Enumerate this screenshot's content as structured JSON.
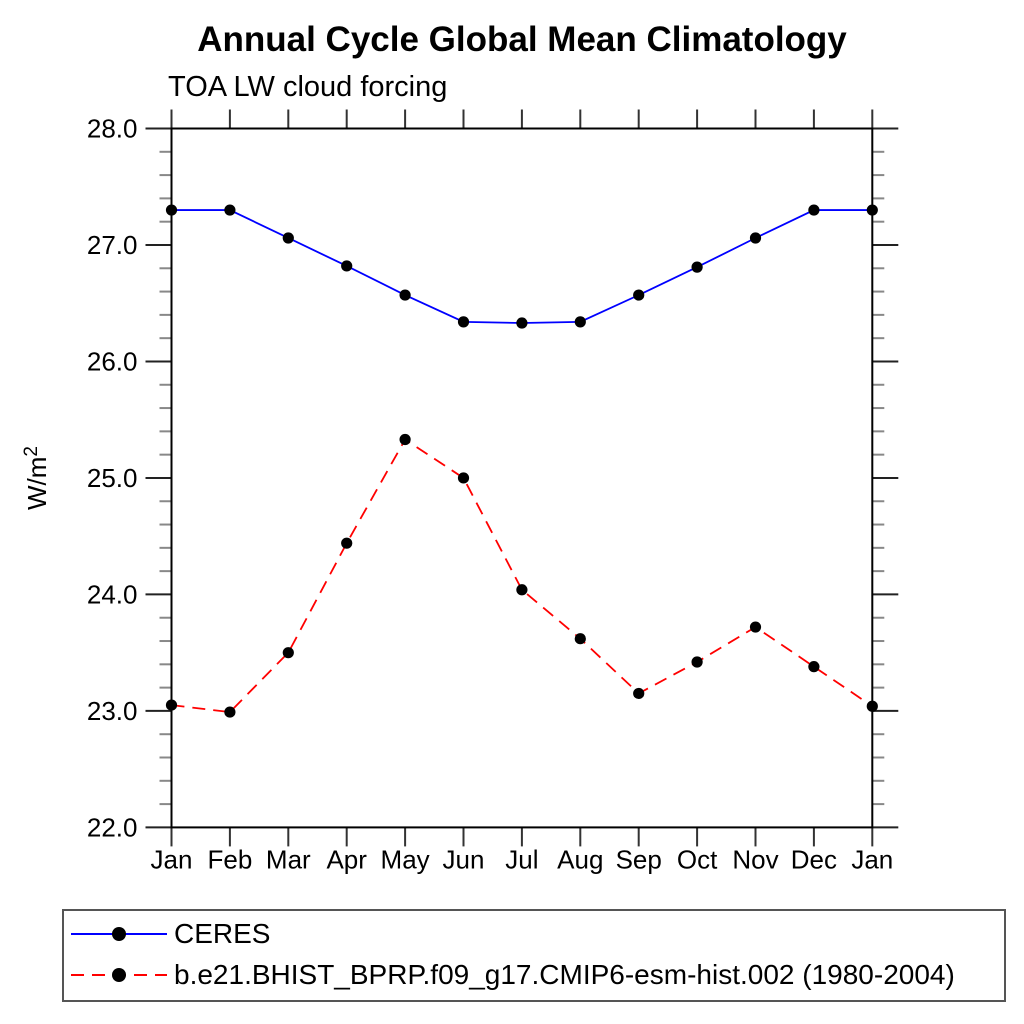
{
  "chart_data": {
    "type": "line",
    "title": "Annual Cycle Global Mean Climatology",
    "subtitle": "TOA LW cloud forcing",
    "ylabel": "W/m²",
    "xlabel": "",
    "categories": [
      "Jan",
      "Feb",
      "Mar",
      "Apr",
      "May",
      "Jun",
      "Jul",
      "Aug",
      "Sep",
      "Oct",
      "Nov",
      "Dec",
      "Jan"
    ],
    "ylim": [
      22.0,
      28.0
    ],
    "y_major_step": 1.0,
    "y_minor_step": 0.2,
    "y_tick_labels": [
      "22.0",
      "23.0",
      "24.0",
      "25.0",
      "26.0",
      "27.0",
      "28.0"
    ],
    "grid": false,
    "legend_position": "bottom",
    "axis_color": "#000000",
    "series": [
      {
        "name": "CERES",
        "color": "#0000ff",
        "line_style": "solid",
        "marker": "circle",
        "marker_color": "#000000",
        "values": [
          27.3,
          27.3,
          27.06,
          26.82,
          26.57,
          26.34,
          26.33,
          26.34,
          26.57,
          26.81,
          27.06,
          27.3,
          27.3
        ]
      },
      {
        "name": "b.e21.BHIST_BPRP.f09_g17.CMIP6-esm-hist.002 (1980-2004)",
        "color": "#ff0000",
        "line_style": "dashed",
        "marker": "circle",
        "marker_color": "#000000",
        "values": [
          23.05,
          22.99,
          23.5,
          24.44,
          25.33,
          25.0,
          24.04,
          23.62,
          23.15,
          23.42,
          23.72,
          23.38,
          23.04
        ]
      }
    ]
  }
}
